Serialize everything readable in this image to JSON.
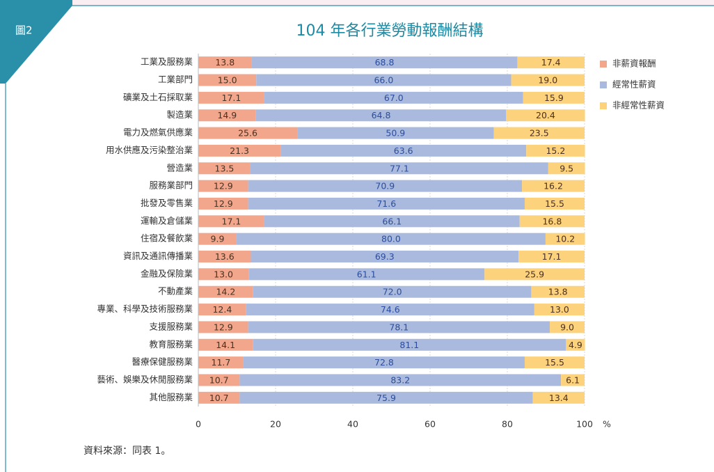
{
  "figure_label": "圖2",
  "source": "資料來源：同表 1。",
  "chart_data": {
    "type": "stacked_barh",
    "title": "104 年各行業勞動報酬結構",
    "categories": [
      "工業及服務業",
      "工業部門",
      "礦業及土石採取業",
      "製造業",
      "電力及燃氣供應業",
      "用水供應及污染整治業",
      "營造業",
      "服務業部門",
      "批發及零售業",
      "運輸及倉儲業",
      "住宿及餐飲業",
      "資訊及通訊傳播業",
      "金融及保險業",
      "不動產業",
      "專業、科學及技術服務業",
      "支援服務業",
      "教育服務業",
      "醫療保健服務業",
      "藝術、娛樂及休閒服務業",
      "其他服務業"
    ],
    "series": [
      {
        "name": "非薪資報酬",
        "color": "#f2a68c",
        "values": [
          13.8,
          15.0,
          17.1,
          14.9,
          25.6,
          21.3,
          13.5,
          12.9,
          12.9,
          17.1,
          9.9,
          13.6,
          13.0,
          14.2,
          12.4,
          12.9,
          14.1,
          11.7,
          10.7,
          10.7
        ],
        "value_labels": [
          "13.8",
          "15.0",
          "17.1",
          "14.9",
          "25.6",
          "21.3",
          "13.5",
          "12.9",
          "12.9",
          "17.1",
          "9.9",
          "13.6",
          "13.0",
          "14.2",
          "12.4",
          "12.9",
          "14.1",
          "11.7",
          "10.7",
          "10.7"
        ]
      },
      {
        "name": "經常性薪資",
        "color": "#a9bade",
        "values": [
          68.8,
          66.0,
          67.0,
          64.8,
          50.9,
          63.6,
          77.1,
          70.9,
          71.6,
          66.1,
          80.0,
          69.3,
          61.1,
          72.0,
          74.6,
          78.1,
          81.1,
          72.8,
          83.2,
          75.9
        ],
        "value_labels": [
          "68.8",
          "66.0",
          "67.0",
          "64.8",
          "50.9",
          "63.6",
          "77.1",
          "70.9",
          "71.6",
          "66.1",
          "80.0",
          "69.3",
          "61.1",
          "72.0",
          "74.6",
          "78.1",
          "81.1",
          "72.8",
          "83.2",
          "75.9"
        ]
      },
      {
        "name": "非經常性薪資",
        "color": "#fdd27c",
        "values": [
          17.4,
          19.0,
          15.9,
          20.4,
          23.5,
          15.2,
          9.5,
          16.2,
          15.5,
          16.8,
          10.2,
          17.1,
          25.9,
          13.8,
          13.0,
          9.0,
          4.9,
          15.5,
          6.1,
          13.4
        ],
        "value_labels": [
          "17.4",
          "19.0",
          "15.9",
          "20.4",
          "23.5",
          "15.2",
          "9.5",
          "16.2",
          "15.5",
          "16.8",
          "10.2",
          "17.1",
          "25.9",
          "13.8",
          "13.0",
          "9.0",
          "4.9",
          "15.5",
          "6.1",
          "13.4"
        ]
      }
    ],
    "xlim": [
      0,
      100
    ],
    "xticks": [
      0,
      20,
      40,
      60,
      80,
      100
    ],
    "xlabel": "%",
    "grid": true,
    "legend": "right"
  }
}
